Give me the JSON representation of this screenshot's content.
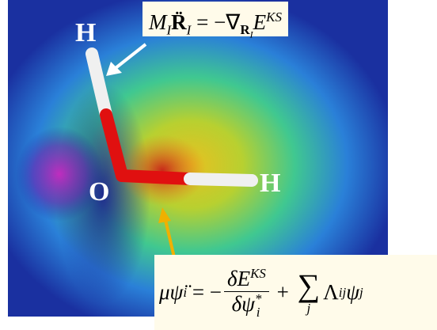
{
  "atoms": [
    {
      "label": "H"
    },
    {
      "label": "O"
    },
    {
      "label": "H"
    }
  ],
  "equation_1": {
    "terms": [
      {
        "base": "M",
        "sub": "I"
      },
      {
        "base": "R̈",
        "sub": "I"
      },
      {
        "base": " = −∇",
        "sub": "R",
        "sub_sub": "I"
      },
      {
        "base": "E",
        "sup": "KS"
      }
    ]
  },
  "equation_2": {
    "lhs": {
      "base": "μψ̈",
      "sub": "i"
    },
    "equals": " = −",
    "numerator": {
      "base": "δE",
      "sup": "KS"
    },
    "denominator": {
      "base": "δψ",
      "sub": "i",
      "sup": "*"
    },
    "plus": " + ",
    "sum": {
      "base": "∑",
      "under": "j"
    },
    "lambda": {
      "base": "Λ",
      "sub": "ij"
    },
    "psi": {
      "base": "ψ",
      "sub": "j"
    }
  }
}
